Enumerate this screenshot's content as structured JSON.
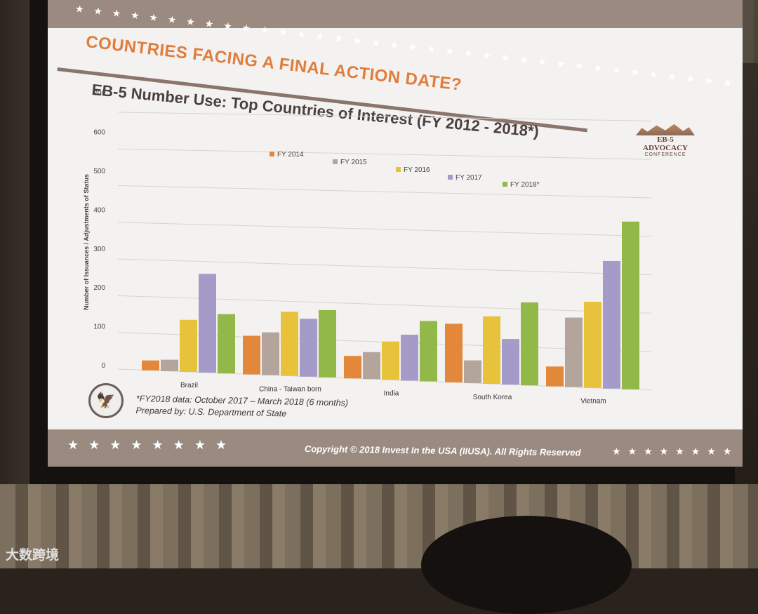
{
  "slide": {
    "title": "COUNTRIES FACING A FINAL ACTION DATE?",
    "subtitle": "EB-5 Number Use: Top Countries of Interest (FY 2012 - 2018*)",
    "logo_line1": "EB-5 ADVOCACY",
    "logo_line2": "CONFERENCE",
    "footnote_1": "*FY2018 data: October 2017 – March 2018 (6 months)",
    "footnote_2": "Prepared by: U.S. Department of State",
    "copyright": "Copyright © 2018 Invest In the USA (IIUSA). All Rights Reserved"
  },
  "watermark": "大数跨境",
  "icons": {
    "seal": "department-of-state-seal-icon",
    "stars": "star-icon"
  },
  "colors": {
    "title": "#e07d3a",
    "band": "#9b8a80",
    "series": [
      "#e3873a",
      "#b3a59c",
      "#e8c23b",
      "#a49bc8",
      "#93b84a"
    ]
  },
  "chart_data": {
    "type": "bar",
    "categories": [
      "Brazil",
      "China - Taiwan born",
      "India",
      "South Korea",
      "Vietnam"
    ],
    "series": [
      {
        "name": "FY 2014",
        "values": [
          27,
          104,
          60,
          155,
          52
        ]
      },
      {
        "name": "FY 2015",
        "values": [
          31,
          115,
          72,
          60,
          182
        ]
      },
      {
        "name": "FY 2016",
        "values": [
          141,
          172,
          102,
          178,
          225
        ]
      },
      {
        "name": "FY 2017",
        "values": [
          267,
          155,
          122,
          120,
          333
        ]
      },
      {
        "name": "FY 2018*",
        "values": [
          160,
          180,
          160,
          218,
          437
        ]
      }
    ],
    "ylabel": "Number of Issuances / Adjustments of Status",
    "ylim": [
      0,
      700
    ],
    "yticks": [
      0,
      100,
      200,
      300,
      400,
      500,
      600,
      700
    ],
    "grid": true,
    "legend": "top"
  }
}
